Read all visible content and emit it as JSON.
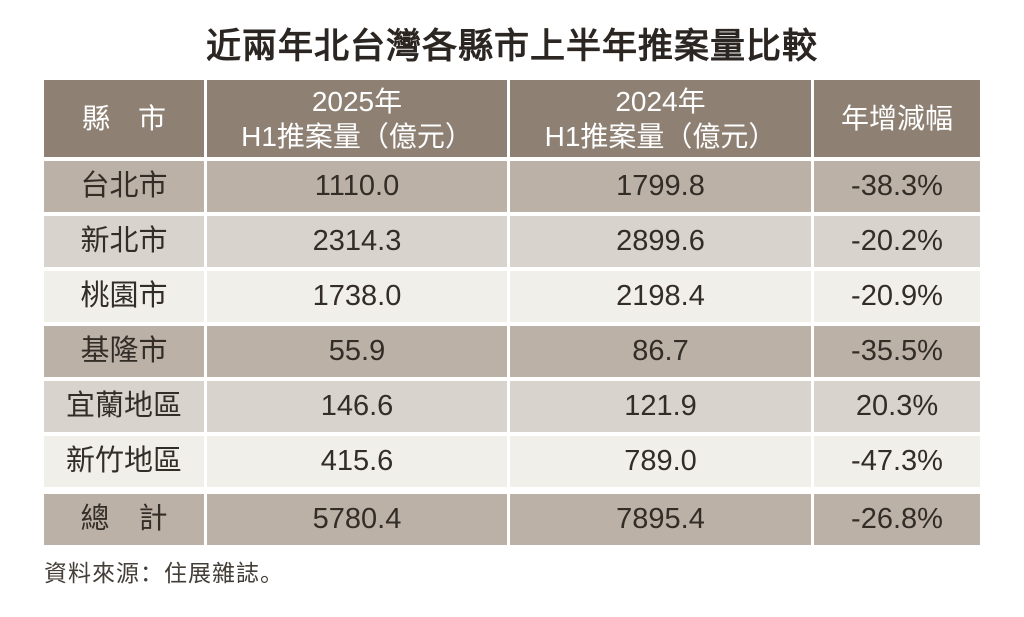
{
  "title": "近兩年北台灣各縣市上半年推案量比較",
  "source_note": "資料來源：住展雜誌。",
  "colors": {
    "header_bg": "#8e8174",
    "row_medium": "#bcb1a7",
    "row_light": "#d9d3cd",
    "row_lighter": "#f1efea",
    "header_text": "#ffffff",
    "body_text": "#332d28"
  },
  "table": {
    "header": {
      "col_city": "縣　市",
      "col_2025_line1": "2025年",
      "col_2025_line2": "H1推案量（億元）",
      "col_2024_line1": "2024年",
      "col_2024_line2": "H1推案量（億元）",
      "col_yoy": "年增減幅"
    },
    "rows": [
      {
        "city": "台北市",
        "v2025": "1110.0",
        "v2024": "1799.8",
        "yoy": "-38.3%"
      },
      {
        "city": "新北市",
        "v2025": "2314.3",
        "v2024": "2899.6",
        "yoy": "-20.2%"
      },
      {
        "city": "桃園市",
        "v2025": "1738.0",
        "v2024": "2198.4",
        "yoy": "-20.9%"
      },
      {
        "city": "基隆市",
        "v2025": "55.9",
        "v2024": "86.7",
        "yoy": "-35.5%"
      },
      {
        "city": "宜蘭地區",
        "v2025": "146.6",
        "v2024": "121.9",
        "yoy": "20.3%"
      },
      {
        "city": "新竹地區",
        "v2025": "415.6",
        "v2024": "789.0",
        "yoy": "-47.3%"
      }
    ],
    "total": {
      "city": "總　計",
      "v2025": "5780.4",
      "v2024": "7895.4",
      "yoy": "-26.8%"
    }
  },
  "chart_data": {
    "type": "table",
    "title": "近兩年北台灣各縣市上半年推案量比較",
    "columns": [
      "縣市",
      "2025年H1推案量（億元）",
      "2024年H1推案量（億元）",
      "年增減幅"
    ],
    "rows": [
      [
        "台北市",
        1110.0,
        1799.8,
        -38.3
      ],
      [
        "新北市",
        2314.3,
        2899.6,
        -20.2
      ],
      [
        "桃園市",
        1738.0,
        2198.4,
        -20.9
      ],
      [
        "基隆市",
        55.9,
        86.7,
        -35.5
      ],
      [
        "宜蘭地區",
        146.6,
        121.9,
        20.3
      ],
      [
        "新竹地區",
        415.6,
        789.0,
        -47.3
      ],
      [
        "總計",
        5780.4,
        7895.4,
        -26.8
      ]
    ],
    "yoy_unit": "%",
    "source": "資料來源：住展雜誌。"
  }
}
